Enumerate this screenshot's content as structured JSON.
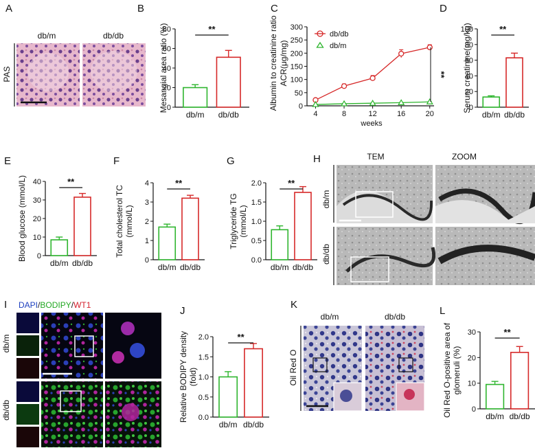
{
  "colors": {
    "dbm": "#2db52d",
    "dbdb": "#d62828",
    "dapi": "#1d3fbf",
    "bodipy": "#22a822",
    "wt1": "#d41f2b"
  },
  "panels": {
    "A": {
      "label": "A",
      "col1": "db/m",
      "col2": "db/db",
      "row": "PAS"
    },
    "H": {
      "label": "H",
      "col1": "TEM",
      "col2": "ZOOM",
      "row1": "db/m",
      "row2": "db/db"
    },
    "I": {
      "label": "I",
      "stain_dapi": "DAPI",
      "slash1": "/",
      "stain_bodipy": "BODIPY",
      "slash2": "/",
      "stain_wt1": "WT1",
      "row1": "db/m",
      "row2": "db/db"
    },
    "K": {
      "label": "K",
      "col1": "db/m",
      "col2": "db/db",
      "row": "Oil Red O"
    }
  },
  "chart_data": [
    {
      "id": "B",
      "label": "B",
      "type": "bar",
      "categories": [
        "db/m",
        "db/db"
      ],
      "values": [
        20,
        51
      ],
      "errors": [
        3,
        7
      ],
      "ylabel": "Mesangial area ratio (%)",
      "ylim": [
        0,
        80
      ],
      "yticks": [
        0,
        20,
        40,
        60,
        80
      ],
      "sig": "**"
    },
    {
      "id": "C",
      "label": "C",
      "type": "line",
      "x": [
        4,
        8,
        12,
        16,
        20
      ],
      "series": [
        {
          "name": "db/db",
          "values": [
            22,
            75,
            105,
            198,
            222
          ],
          "errors": [
            4,
            8,
            10,
            15,
            10
          ]
        },
        {
          "name": "db/m",
          "values": [
            5,
            8,
            10,
            12,
            15
          ],
          "errors": [
            1,
            1,
            1,
            1,
            1
          ]
        }
      ],
      "xlabel": "weeks",
      "ylabel": "Albumin to creatinine ratio ACR(μg/mg)",
      "ylim": [
        0,
        300
      ],
      "yticks": [
        0,
        50,
        100,
        150,
        200,
        250,
        300
      ],
      "sig": "**",
      "legend": "top-left"
    },
    {
      "id": "D",
      "label": "D",
      "type": "bar",
      "categories": [
        "db/m",
        "db/db"
      ],
      "values": [
        13,
        63
      ],
      "errors": [
        1.5,
        6
      ],
      "ylabel": "Serum creatinine(mg/kg)",
      "ylim": [
        0,
        100
      ],
      "yticks": [
        0,
        20,
        40,
        60,
        80,
        100
      ],
      "sig": "**"
    },
    {
      "id": "E",
      "label": "E",
      "type": "bar",
      "categories": [
        "db/m",
        "db/db"
      ],
      "values": [
        8.5,
        31.5
      ],
      "errors": [
        1.5,
        2
      ],
      "ylabel": "Blood glucose (mmol/L)",
      "ylim": [
        0,
        40
      ],
      "yticks": [
        0,
        10,
        20,
        30,
        40
      ],
      "sig": "**"
    },
    {
      "id": "F",
      "label": "F",
      "type": "bar",
      "categories": [
        "db/m",
        "db/db"
      ],
      "values": [
        1.7,
        3.2
      ],
      "errors": [
        0.15,
        0.15
      ],
      "ylabel": "Total cholesterol TC (mmol/L)",
      "ylim": [
        0,
        4
      ],
      "yticks": [
        0,
        1,
        2,
        3,
        4
      ],
      "sig": "**"
    },
    {
      "id": "G",
      "label": "G",
      "type": "bar",
      "categories": [
        "db/m",
        "db/db"
      ],
      "values": [
        0.78,
        1.75
      ],
      "errors": [
        0.1,
        0.15
      ],
      "ylabel": "Triglyceride TG (mmol/L)",
      "ylim": [
        0,
        2.0
      ],
      "yticks": [
        0,
        0.5,
        1.0,
        1.5,
        2.0
      ],
      "sig": "**"
    },
    {
      "id": "J",
      "label": "J",
      "type": "bar",
      "categories": [
        "db/m",
        "db/db"
      ],
      "values": [
        1.0,
        1.7
      ],
      "errors": [
        0.13,
        0.13
      ],
      "ylabel": "Relative BODIPY density (fold)",
      "ylim": [
        0,
        2.0
      ],
      "yticks": [
        0,
        0.5,
        1.0,
        1.5,
        2.0
      ],
      "sig": "**"
    },
    {
      "id": "L",
      "label": "L",
      "type": "bar",
      "categories": [
        "db/m",
        "db/db"
      ],
      "values": [
        9.5,
        22
      ],
      "errors": [
        1.2,
        2.3
      ],
      "ylabel": "Oil Red O-positive area of glomeruli (%)",
      "ylim": [
        0,
        30
      ],
      "yticks": [
        0,
        10,
        20,
        30
      ],
      "sig": "**"
    }
  ]
}
